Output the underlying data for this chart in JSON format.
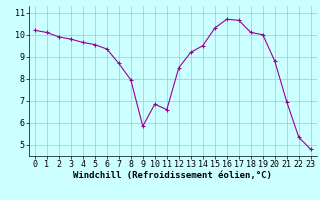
{
  "hours": [
    0,
    1,
    2,
    3,
    4,
    5,
    6,
    7,
    8,
    9,
    10,
    11,
    12,
    13,
    14,
    15,
    16,
    17,
    18,
    19,
    20,
    21,
    22,
    23
  ],
  "values": [
    10.2,
    10.1,
    9.9,
    9.8,
    9.65,
    9.55,
    9.35,
    8.7,
    7.95,
    5.85,
    6.85,
    6.6,
    8.5,
    9.2,
    9.5,
    10.3,
    10.7,
    10.65,
    10.1,
    10.0,
    8.8,
    6.95,
    5.35,
    4.8
  ],
  "line_color": "#990099",
  "marker_color": "#990099",
  "bg_color": "#ccffff",
  "grid_color": "#99cccc",
  "xlabel": "Windchill (Refroidissement éolien,°C)",
  "xlim": [
    -0.5,
    23.5
  ],
  "ylim": [
    4.5,
    11.3
  ],
  "yticks": [
    5,
    6,
    7,
    8,
    9,
    10,
    11
  ],
  "xticks": [
    0,
    1,
    2,
    3,
    4,
    5,
    6,
    7,
    8,
    9,
    10,
    11,
    12,
    13,
    14,
    15,
    16,
    17,
    18,
    19,
    20,
    21,
    22,
    23
  ],
  "font_size_label": 6.5,
  "font_size_tick": 6.0
}
